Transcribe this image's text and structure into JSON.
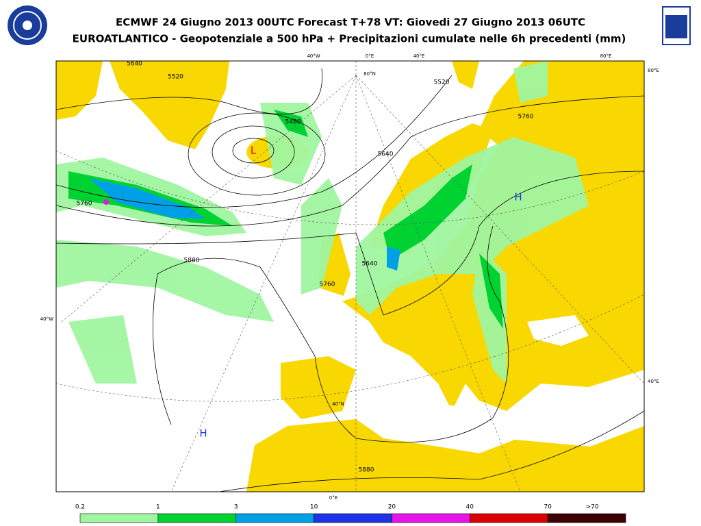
{
  "header": {
    "title_line1": "ECMWF 24 Giugno 2013 00UTC Forecast T+78 VT: Giovedi 27 Giugno 2013 06UTC",
    "title_line2": "EUROATLANTICO - Geopotenziale a 500 hPa + Precipitazioni cumulate nelle 6h precedenti (mm)"
  },
  "map": {
    "graticule_labels": [
      "40°W",
      "0°E",
      "40°E",
      "80°E",
      "80°E",
      "40°E",
      "40°W",
      "0°E",
      "40°N",
      "80°N"
    ],
    "contour_labels": [
      "5520",
      "5640",
      "5480",
      "5760",
      "5880",
      "5520",
      "5640",
      "5760",
      "5640",
      "5760",
      "5880"
    ],
    "pressure_centers": [
      "L",
      "H",
      "H"
    ]
  },
  "legend": {
    "labels": [
      "0.2",
      "1",
      "3",
      "10",
      "20",
      "40",
      "70",
      ">70"
    ],
    "colors": [
      "#a0f5a0",
      "#00d232",
      "#00a0e6",
      "#1e32e6",
      "#e614e6",
      "#dc0000",
      "#3c0000"
    ]
  }
}
